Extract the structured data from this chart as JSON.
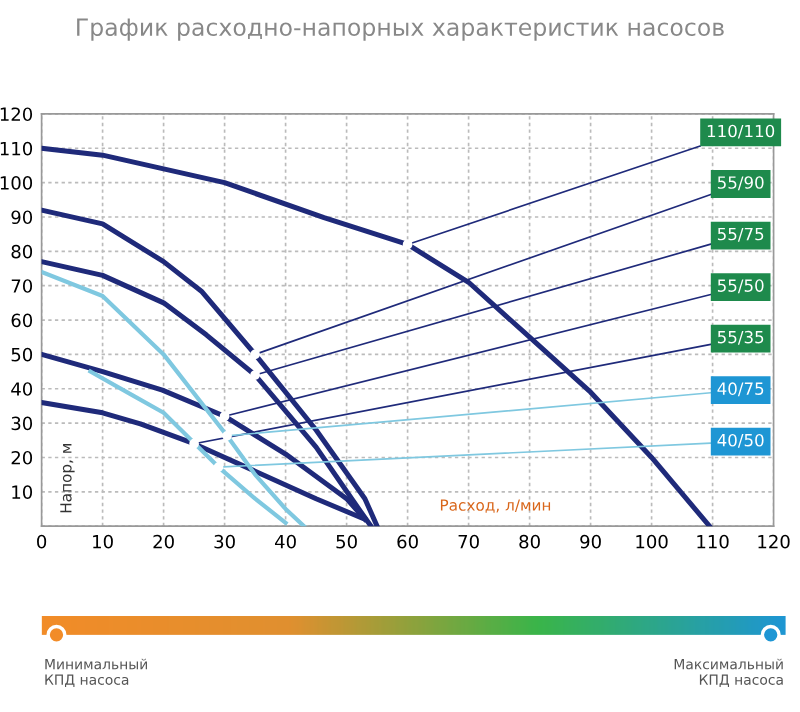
{
  "chart_data": {
    "type": "line",
    "title": "График расходно-напорных характеристик насосов",
    "xlabel": "Расход, л/мин",
    "ylabel": "Напор, м",
    "xlim": [
      0,
      120
    ],
    "ylim": [
      0,
      120
    ],
    "xticks": [
      0,
      10,
      20,
      30,
      40,
      50,
      60,
      70,
      80,
      90,
      100,
      110,
      120
    ],
    "yticks": [
      {
        "value": 0,
        "label": null
      },
      10,
      20,
      30,
      40,
      50,
      60,
      70,
      80,
      90,
      100,
      110,
      120
    ],
    "grid": true,
    "legend": false,
    "marker": "none",
    "line_style": "solid",
    "series": [
      {
        "name": "110/110",
        "color": "#1f2a7a",
        "x": [
          0,
          10,
          20,
          30,
          46.3,
          60,
          70,
          80,
          90,
          100,
          109.5
        ],
        "values": [
          110,
          108,
          104,
          100,
          89.8,
          82,
          71,
          55,
          39,
          20,
          0
        ]
      },
      {
        "name": "55/90",
        "color": "#1f2a7a",
        "x": [
          0,
          10,
          20,
          26.2,
          35,
          45,
          53,
          55
        ],
        "values": [
          92,
          88,
          77,
          68.4,
          50,
          28,
          8,
          0
        ]
      },
      {
        "name": "55/75",
        "color": "#1f2a7a",
        "x": [
          0,
          10,
          20,
          27,
          35,
          45,
          52,
          54
        ],
        "values": [
          77,
          73,
          65,
          55.7,
          44,
          23,
          5,
          0
        ]
      },
      {
        "name": "55/50",
        "color": "#1f2a7a",
        "x": [
          0,
          10,
          19.8,
          30,
          40,
          50,
          53
        ],
        "values": [
          50,
          45,
          39.6,
          32,
          21,
          8,
          2
        ]
      },
      {
        "name": "55/35",
        "color": "#1f2a7a",
        "x": [
          0,
          10,
          16.2,
          25,
          35,
          45,
          53
        ],
        "values": [
          36,
          33,
          29.8,
          24,
          16,
          8,
          2
        ]
      },
      {
        "name": "40/75",
        "color": "#7fc8e0",
        "x": [
          0,
          10,
          20,
          30.4,
          35,
          40,
          43
        ],
        "values": [
          74,
          67,
          50,
          26.3,
          15,
          5,
          0
        ]
      },
      {
        "name": "40/50",
        "color": "#7fc8e0",
        "x": [
          8,
          15,
          20,
          29,
          35,
          40
        ],
        "values": [
          45,
          38,
          33,
          17.2,
          8,
          1
        ]
      }
    ],
    "annotations": [
      "Минимальный\nКПД насоса",
      "Максимальный\nКПД насоса"
    ]
  }
}
